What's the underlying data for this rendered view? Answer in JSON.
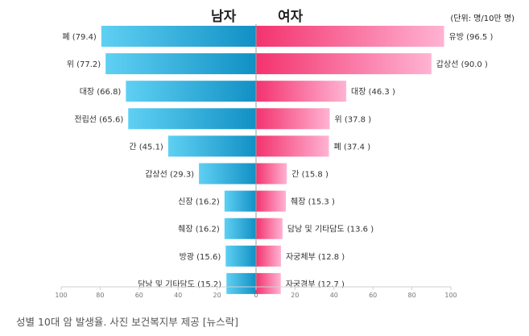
{
  "chart_data": {
    "type": "bar",
    "orientation": "horizontal-diverging",
    "left_header": "남자",
    "right_header": "여자",
    "unit": "(단위: 명/10만 명)",
    "x_ticks": [
      "100",
      "80",
      "60",
      "40",
      "20",
      "0",
      "20",
      "40",
      "60",
      "80",
      "100"
    ],
    "xlim": [
      0,
      100
    ],
    "male": [
      {
        "label": "폐 (79.4)",
        "value": 79.4
      },
      {
        "label": "위 (77.2)",
        "value": 77.2
      },
      {
        "label": "대장 (66.8)",
        "value": 66.8
      },
      {
        "label": "전립선 (65.6)",
        "value": 65.6
      },
      {
        "label": "간 (45.1)",
        "value": 45.1
      },
      {
        "label": "갑상선 (29.3)",
        "value": 29.3
      },
      {
        "label": "신장 (16.2)",
        "value": 16.2
      },
      {
        "label": "췌장 (16.2)",
        "value": 16.2
      },
      {
        "label": "방광 (15.6)",
        "value": 15.6
      },
      {
        "label": "담낭 및 기타담도 (15.2)",
        "value": 15.2
      }
    ],
    "female": [
      {
        "label": "유방 (96.5 )",
        "value": 96.5
      },
      {
        "label": "갑상선 (90.0 )",
        "value": 90.0
      },
      {
        "label": "대장 (46.3 )",
        "value": 46.3
      },
      {
        "label": "위 (37.8 )",
        "value": 37.8
      },
      {
        "label": "폐 (37.4 )",
        "value": 37.4
      },
      {
        "label": "간 (15.8 )",
        "value": 15.8
      },
      {
        "label": "췌장 (15.3 )",
        "value": 15.3
      },
      {
        "label": "담낭 및 기타담도 (13.6 )",
        "value": 13.6
      },
      {
        "label": "자궁체부 (12.8 )",
        "value": 12.8
      },
      {
        "label": "자궁경부 (12.7 )",
        "value": 12.7
      }
    ],
    "colors": {
      "male_light": "#5fd0f3",
      "male_dark": "#1190c4",
      "female_light": "#ffb3d2",
      "female_dark": "#f3336f"
    }
  },
  "caption": "성별 10대 암 발생율. 사진 보건복지부 제공 [뉴스락]"
}
